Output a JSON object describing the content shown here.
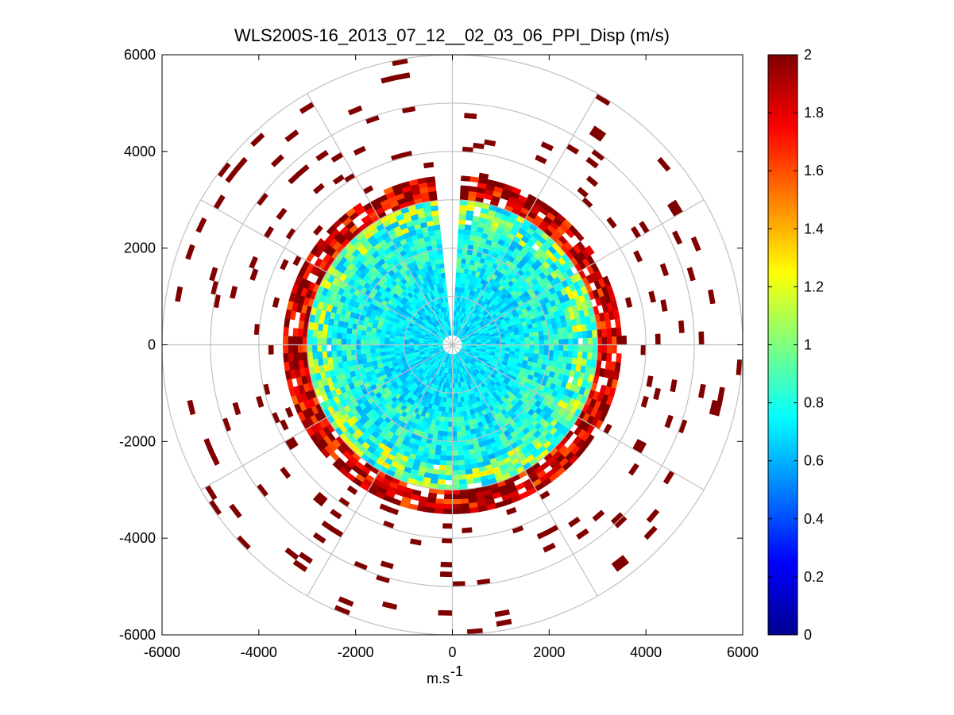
{
  "chart_data": {
    "type": "heatmap",
    "subtype": "polar-ppi",
    "title": "WLS200S-16_2013_07_12__02_03_06_PPI_Disp (m/s)",
    "xlabel": "m.s",
    "xlabel_superscript": "-1",
    "ylabel": "",
    "xlim": [
      -6000,
      6000
    ],
    "ylim": [
      -6000,
      6000
    ],
    "xticks": [
      -6000,
      -4000,
      -2000,
      0,
      2000,
      4000,
      6000
    ],
    "yticks": [
      6000,
      4000,
      2000,
      0,
      -2000,
      -4000,
      -6000
    ],
    "xtick_labels": [
      "-6000",
      "-4000",
      "-2000",
      "0",
      "2000",
      "4000",
      "6000"
    ],
    "ytick_labels": [
      "6000",
      "4000",
      "2000",
      "0",
      "-2000",
      "-4000",
      "-6000"
    ],
    "polar_grid": {
      "ring_radii": [
        1000,
        2000,
        3000,
        4000,
        5000,
        6000
      ],
      "spoke_step_deg": 30
    },
    "colorbar": {
      "colormap": "jet",
      "range": [
        0,
        2
      ],
      "ticks": [
        0,
        0.2,
        0.4,
        0.6,
        0.8,
        1,
        1.2,
        1.4,
        1.6,
        1.8,
        2
      ],
      "tick_labels": [
        "0",
        "0.2",
        "0.4",
        "0.6",
        "0.8",
        "1",
        "1.2",
        "1.4",
        "1.6",
        "1.8",
        "2"
      ]
    },
    "field_zones": [
      {
        "r_min": 0,
        "r_max": 1500,
        "value_mean": 0.7,
        "value_spread": 0.12,
        "fill": 1.0
      },
      {
        "r_min": 1500,
        "r_max": 2500,
        "value_mean": 0.78,
        "value_spread": 0.2,
        "fill": 1.0
      },
      {
        "r_min": 2500,
        "r_max": 2950,
        "value_mean": 0.95,
        "value_spread": 0.35,
        "fill": 0.98
      },
      {
        "r_min": 2950,
        "r_max": 3450,
        "value_mean": 1.85,
        "value_spread": 0.3,
        "fill": 0.85
      },
      {
        "r_min": 3450,
        "r_max": 6000,
        "value_mean": 2.0,
        "value_spread": 0.0,
        "fill": 0.045
      }
    ],
    "blanked_sector_deg": [
      87,
      95
    ]
  }
}
